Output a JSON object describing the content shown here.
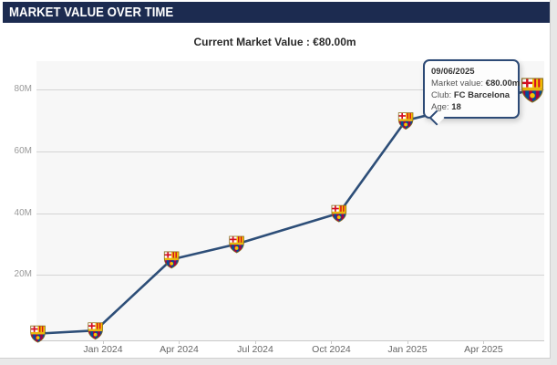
{
  "header": {
    "title": "MARKET VALUE OVER TIME",
    "background": "#1c2b50",
    "text_color": "#ffffff"
  },
  "subtitle": {
    "text": "Current Market Value : €80.00m"
  },
  "chart_data": {
    "type": "line",
    "title": "MARKET VALUE OVER TIME",
    "subtitle": "Current Market Value : €80.00m",
    "currency": "EUR",
    "unit": "millions",
    "marker": "fc-barcelona-crest",
    "line_color": "#2d4e78",
    "plot_background": "#f7f7f7",
    "grid": "horizontal-only",
    "ylim": [
      0,
      90
    ],
    "x_ticks": [
      "Jan 2024",
      "Apr 2024",
      "Jul 2024",
      "Oct 2024",
      "Jan 2025",
      "Apr 2025"
    ],
    "y_ticks": [
      {
        "label": "20M",
        "value": 20
      },
      {
        "label": "40M",
        "value": 40
      },
      {
        "label": "60M",
        "value": 60
      },
      {
        "label": "80M",
        "value": 80
      }
    ],
    "series": [
      {
        "name": "Market value",
        "club": "FC Barcelona",
        "points": [
          {
            "date": "2023-10-14",
            "value_m": 1
          },
          {
            "date": "2023-12-22",
            "value_m": 2
          },
          {
            "date": "2024-03-22",
            "value_m": 25
          },
          {
            "date": "2024-06-09",
            "value_m": 30
          },
          {
            "date": "2024-10-10",
            "value_m": 40
          },
          {
            "date": "2024-12-29",
            "value_m": 70
          },
          {
            "date": "2025-06-09",
            "value_m": 80,
            "highlighted": true
          }
        ]
      }
    ]
  },
  "tooltip": {
    "date": "09/06/2025",
    "market_value_label": "Market value:",
    "market_value": "€80.00m",
    "club_label": "Club:",
    "club": "FC Barcelona",
    "age_label": "Age:",
    "age": "18"
  }
}
